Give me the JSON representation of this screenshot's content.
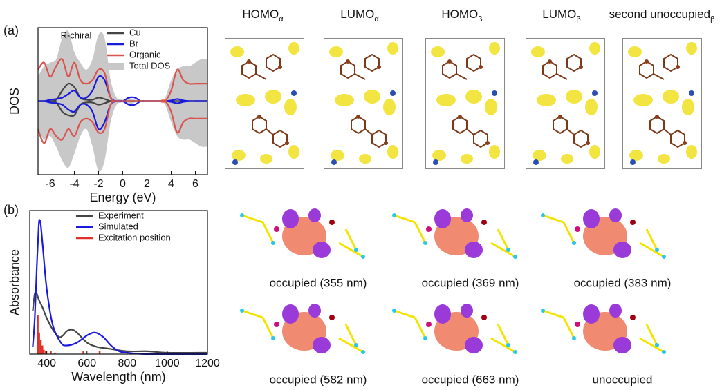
{
  "chart_data": [
    {
      "type": "line",
      "panel_label": "(a)",
      "annotation": "R-chiral",
      "xlabel": "Energy (eV)",
      "ylabel": "DOS",
      "xlim": [
        -7,
        7
      ],
      "xticks": [
        -6,
        -4,
        -2,
        0,
        2,
        4,
        6
      ],
      "ylim": [
        -1.05,
        1.05
      ],
      "legend": "upper right",
      "x": [
        -7,
        -6.5,
        -6,
        -5.5,
        -5,
        -4.5,
        -4,
        -3.5,
        -3,
        -2.5,
        -2,
        -1.5,
        -1,
        -0.5,
        0,
        0.5,
        1,
        1.5,
        2,
        2.5,
        3,
        3.5,
        4,
        4.5,
        5,
        5.5,
        6,
        6.5,
        7
      ],
      "series": [
        {
          "name": "Cu",
          "color": "#444444",
          "style": "line",
          "values": [
            0,
            0,
            0,
            0.02,
            0.15,
            0.25,
            0.2,
            0.05,
            0.02,
            0.02,
            0.05,
            0.03,
            0,
            0,
            0,
            0,
            0,
            0,
            0,
            0,
            0,
            0,
            0,
            0,
            0,
            0,
            0,
            0,
            0
          ],
          "values_down": [
            0,
            0,
            0,
            -0.02,
            -0.15,
            -0.2,
            -0.2,
            -0.05,
            -0.02,
            -0.02,
            -0.05,
            -0.03,
            0,
            0,
            0,
            0,
            0,
            0,
            0,
            0,
            0,
            0,
            0,
            0,
            0,
            0,
            0,
            0,
            0
          ]
        },
        {
          "name": "Br",
          "color": "#1a1adf",
          "style": "line",
          "values": [
            0,
            0,
            0.02,
            0.03,
            0.05,
            0.1,
            0.15,
            0.05,
            0.05,
            0.15,
            0.35,
            0.3,
            0.05,
            0,
            0,
            0.05,
            0.05,
            0,
            0,
            0,
            0,
            0,
            0.01,
            0.03,
            0.01,
            0,
            0,
            0,
            0
          ],
          "values_down": [
            0,
            0,
            -0.02,
            -0.03,
            -0.05,
            -0.12,
            -0.15,
            -0.05,
            -0.05,
            -0.15,
            -0.4,
            -0.3,
            -0.05,
            0,
            0,
            -0.05,
            -0.05,
            0,
            0,
            0,
            0,
            0,
            -0.01,
            -0.03,
            -0.01,
            0,
            0,
            0,
            0
          ]
        },
        {
          "name": "Organic",
          "color": "#d9534f",
          "style": "line",
          "values": [
            0.45,
            0.55,
            0.35,
            0.5,
            0.6,
            0.35,
            0.55,
            0.3,
            0.25,
            0.3,
            0.45,
            0.4,
            0.05,
            0,
            0,
            0,
            0,
            0,
            0,
            0,
            0,
            0,
            0.15,
            0.45,
            0.3,
            0.25,
            0.25,
            0.25,
            0.25
          ],
          "values_down": [
            -0.4,
            -0.6,
            -0.4,
            -0.5,
            -0.55,
            -0.4,
            -0.5,
            -0.3,
            -0.25,
            -0.3,
            -0.45,
            -0.4,
            -0.05,
            0,
            0,
            0,
            0,
            0,
            0,
            0,
            0,
            0,
            -0.15,
            -0.45,
            -0.3,
            -0.25,
            -0.25,
            -0.25,
            -0.25
          ]
        },
        {
          "name": "Total DOS",
          "color": "#c8c8c8",
          "style": "area",
          "values": [
            0.35,
            0.5,
            0.55,
            0.6,
            0.9,
            1.0,
            0.7,
            0.55,
            0.45,
            0.6,
            0.95,
            0.9,
            0.3,
            0.05,
            0.02,
            0.05,
            0.02,
            0,
            0,
            0,
            0,
            0.05,
            0.3,
            0.45,
            0.5,
            0.5,
            0.55,
            0.6,
            0.6
          ],
          "values_down": [
            -0.4,
            -0.55,
            -0.5,
            -0.65,
            -0.85,
            -0.95,
            -0.75,
            -0.5,
            -0.4,
            -0.65,
            -1.0,
            -0.85,
            -0.3,
            -0.05,
            -0.02,
            -0.05,
            -0.02,
            0,
            0,
            0,
            0,
            -0.05,
            -0.3,
            -0.5,
            -0.55,
            -0.55,
            -0.6,
            -0.65,
            -0.65
          ]
        }
      ]
    },
    {
      "type": "line",
      "panel_label": "(b)",
      "xlabel": "Wavelength (nm)",
      "ylabel": "Absorbance",
      "xlim": [
        315,
        1200
      ],
      "xticks": [
        400,
        600,
        800,
        1000,
        1200
      ],
      "ylim": [
        0,
        1
      ],
      "legend": "upper right",
      "series": [
        {
          "name": "Experiment",
          "color": "#444444",
          "style": "line",
          "x": [
            330,
            340,
            350,
            360,
            380,
            400,
            430,
            460,
            480,
            500,
            525,
            550,
            600,
            650,
            700,
            800,
            900,
            1000,
            1200
          ],
          "values": [
            0.3,
            0.42,
            0.42,
            0.38,
            0.32,
            0.25,
            0.17,
            0.12,
            0.13,
            0.16,
            0.17,
            0.15,
            0.08,
            0.05,
            0.04,
            0.02,
            0.02,
            0.01,
            0.01
          ]
        },
        {
          "name": "Simulated",
          "color": "#1a1adf",
          "style": "line",
          "x": [
            330,
            340,
            350,
            360,
            365,
            370,
            380,
            400,
            430,
            470,
            500,
            550,
            600,
            640,
            680,
            720,
            760,
            800,
            900,
            1200
          ],
          "values": [
            0.05,
            0.25,
            0.6,
            0.9,
            0.93,
            0.9,
            0.75,
            0.45,
            0.2,
            0.08,
            0.06,
            0.08,
            0.13,
            0.15,
            0.12,
            0.06,
            0.02,
            0.01,
            0,
            0
          ]
        },
        {
          "name": "Excitation position",
          "color": "#e0302a",
          "style": "stem",
          "x": [
            355,
            362,
            370,
            378,
            385,
            395,
            420,
            440,
            582,
            663
          ],
          "values": [
            0.27,
            0.15,
            0.1,
            0.06,
            0.03,
            0.02,
            0.02,
            0.01,
            0.02,
            0.02
          ]
        }
      ]
    }
  ],
  "orbitals": {
    "top": [
      {
        "main": "HOMO",
        "sub": "α"
      },
      {
        "main": "LUMO",
        "sub": "α"
      },
      {
        "main": "HOMO",
        "sub": "β"
      },
      {
        "main": "LUMO",
        "sub": "β"
      },
      {
        "main": "second unoccupied",
        "sub": "β"
      }
    ],
    "bottom": [
      "occupied (355 nm)",
      "occupied (369 nm)",
      "occupied (383 nm)",
      "occupied (582 nm)",
      "occupied (663 nm)",
      "unoccupied"
    ]
  }
}
